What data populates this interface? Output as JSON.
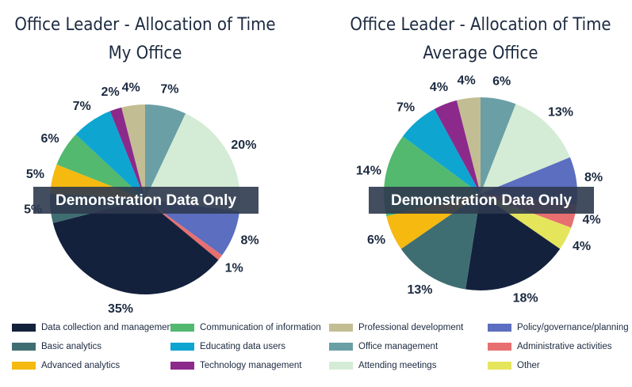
{
  "chart_data": [
    {
      "type": "pie",
      "title": "Office Leader - Allocation of Time",
      "subtitle": "My Office",
      "watermark": "Demonstration Data Only",
      "categories": [
        "Office management",
        "Attending meetings",
        "Policy/governance/planning",
        "Administrative activities",
        "Data collection and management",
        "Basic analytics",
        "Advanced analytics",
        "Communication of information",
        "Educating data users",
        "Technology management",
        "Professional development"
      ],
      "values": [
        7,
        20,
        8,
        1,
        35,
        5,
        5,
        6,
        7,
        2,
        4
      ],
      "value_labels": [
        "7%",
        "20%",
        "8%",
        "1%",
        "35%",
        "5%",
        "5%",
        "6%",
        "7%",
        "2%",
        "4%"
      ],
      "colors": [
        "#6b9fa6",
        "#d4ecd5",
        "#5b6ec0",
        "#e86f6f",
        "#14213d",
        "#3f6e72",
        "#f5b910",
        "#52b96f",
        "#0ea5d1",
        "#8b2a8b",
        "#c3bd93"
      ]
    },
    {
      "type": "pie",
      "title": "Office Leader - Allocation of Time",
      "subtitle": "Average Office",
      "watermark": "Demonstration Data Only",
      "categories": [
        "Office management",
        "Attending meetings",
        "Policy/governance/planning",
        "Administrative activities",
        "Other",
        "Data collection and management",
        "Basic analytics",
        "Advanced analytics",
        "Communication of information",
        "Educating data users",
        "Technology management",
        "Professional development"
      ],
      "values": [
        6,
        13,
        8,
        4,
        4,
        18,
        13,
        6,
        14,
        7,
        4,
        4
      ],
      "value_labels": [
        "6%",
        "13%",
        "8%",
        "4%",
        "4%",
        "18%",
        "13%",
        "6%",
        "14%",
        "7%",
        "4%",
        "4%"
      ],
      "colors": [
        "#6b9fa6",
        "#d4ecd5",
        "#5b6ec0",
        "#e86f6f",
        "#e5e55c",
        "#14213d",
        "#3f6e72",
        "#f5b910",
        "#52b96f",
        "#0ea5d1",
        "#8b2a8b",
        "#c3bd93"
      ]
    }
  ]
}
